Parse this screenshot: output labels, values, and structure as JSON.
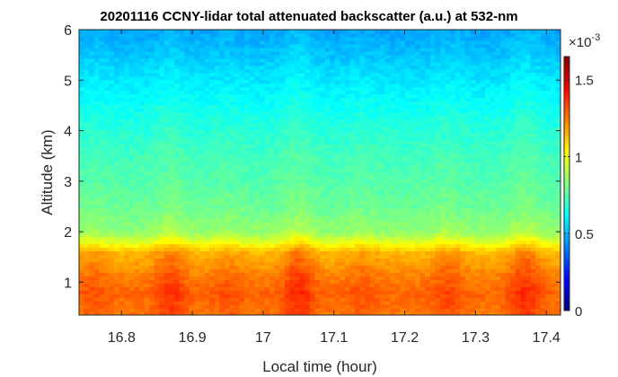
{
  "chart_data": {
    "type": "heatmap",
    "title": "20201116 CCNY-lidar total attenuated backscatter (a.u.) at 532-nm",
    "xlabel": "Local time (hour)",
    "ylabel": "Altitude (km)",
    "xlim": [
      16.74,
      17.42
    ],
    "ylim": [
      0.35,
      6.0
    ],
    "x_ticks": [
      16.8,
      16.9,
      17,
      17.1,
      17.2,
      17.3,
      17.4
    ],
    "x_tick_labels": [
      "16.8",
      "16.9",
      "17",
      "17.1",
      "17.2",
      "17.3",
      "17.4"
    ],
    "y_ticks": [
      1,
      2,
      3,
      4,
      5,
      6
    ],
    "y_tick_labels": [
      "1",
      "2",
      "3",
      "4",
      "5",
      "6"
    ],
    "colormap": "jet",
    "colorbar": {
      "clim": [
        0,
        0.00165
      ],
      "ticks": [
        0,
        0.0005,
        0.001,
        0.0015
      ],
      "tick_labels": [
        "0",
        "0.5",
        "1",
        "1.5"
      ],
      "exponent_base": "×10",
      "exponent_power": "-3"
    },
    "altitude_profile_km": [
      0.4,
      0.8,
      1.2,
      1.6,
      1.8,
      2.0,
      2.5,
      3.0,
      3.5,
      4.0,
      4.5,
      5.0,
      5.5,
      6.0
    ],
    "backscatter_profile": [
      0.00125,
      0.00128,
      0.00122,
      0.00114,
      0.00098,
      0.00085,
      0.00079,
      0.00075,
      0.00072,
      0.00068,
      0.00063,
      0.00058,
      0.00052,
      0.00047
    ],
    "time_enhancement_hours": [
      16.76,
      16.87,
      16.95,
      17.05,
      17.14,
      17.26,
      17.37
    ],
    "time_enhancement_values": [
      4e-05,
      9e-05,
      4e-05,
      0.00011,
      4e-05,
      6e-05,
      0.0001
    ],
    "grid": false,
    "legend": "none"
  }
}
